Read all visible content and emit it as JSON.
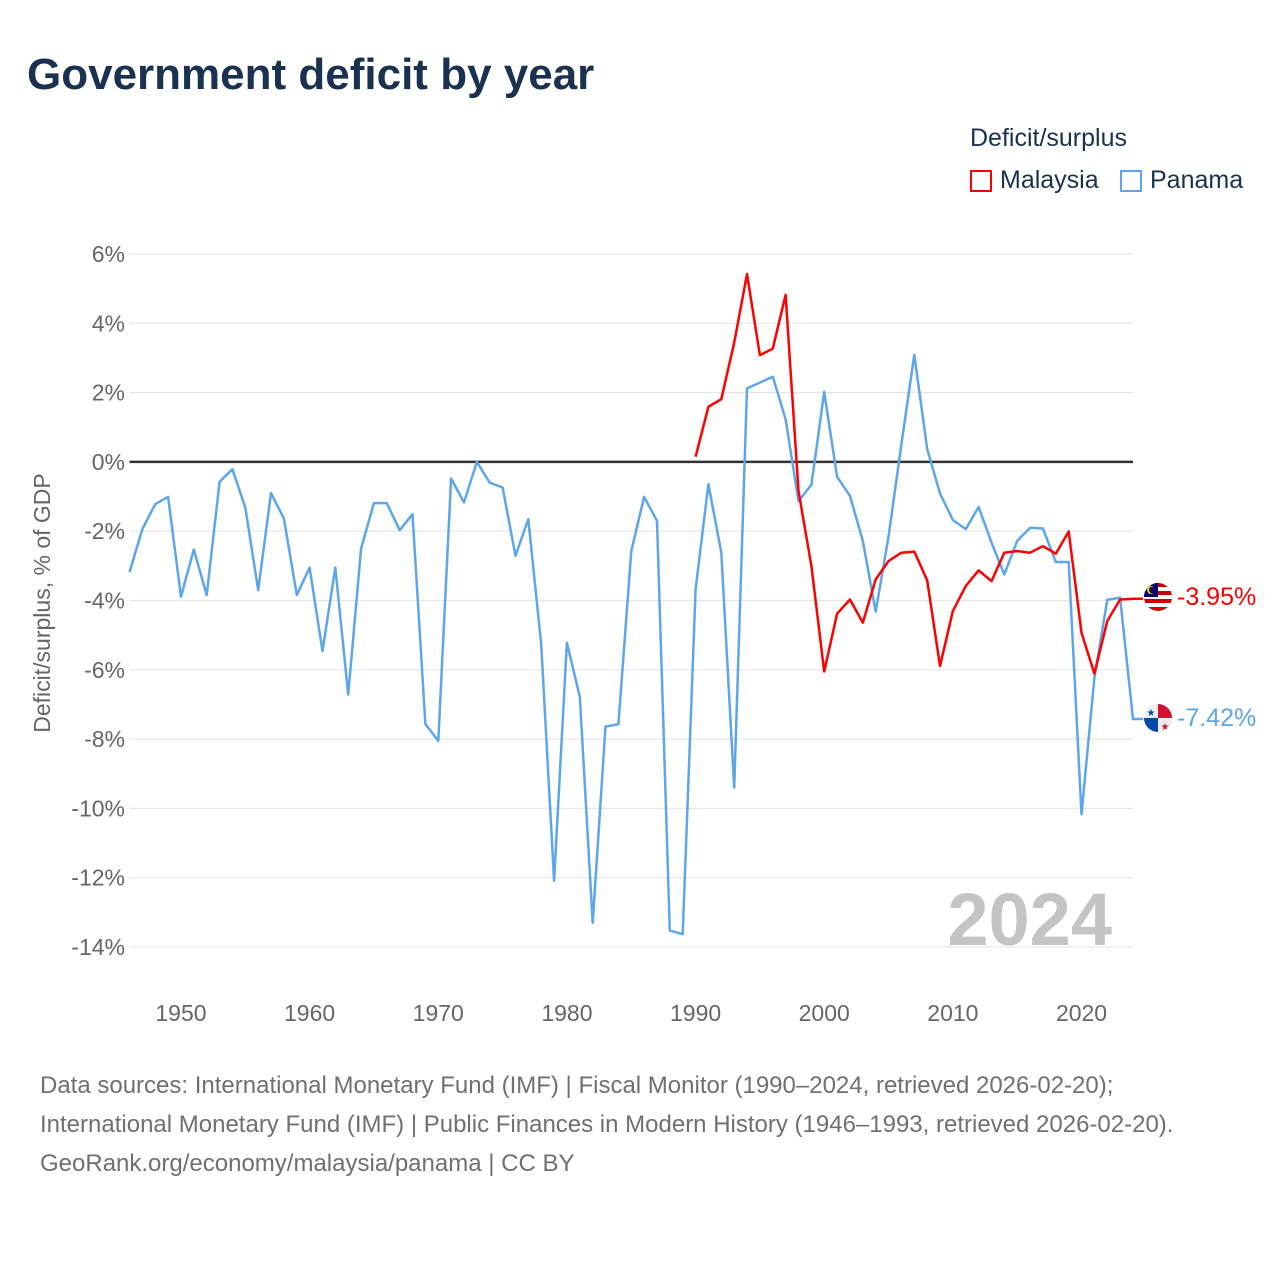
{
  "title": "Government deficit by year",
  "legend": {
    "title": "Deficit/surplus",
    "items": [
      {
        "name": "Malaysia",
        "color": "#ff0000"
      },
      {
        "name": "Panama",
        "color": "#5ea6ea"
      }
    ]
  },
  "chart_data": {
    "type": "line",
    "title": "Government deficit by year",
    "xlabel": "",
    "ylabel": "Deficit/surplus, % of GDP",
    "xlim": [
      1946,
      2024
    ],
    "ylim": [
      -14,
      6
    ],
    "yticks": [
      6,
      4,
      2,
      0,
      -2,
      -4,
      -6,
      -8,
      -10,
      -12,
      -14
    ],
    "ytick_labels": [
      "6%",
      "4%",
      "2%",
      "0%",
      "-2%",
      "-4%",
      "-6%",
      "-8%",
      "-10%",
      "-12%",
      "-14%"
    ],
    "xticks": [
      1950,
      1960,
      1970,
      1980,
      1990,
      2000,
      2010,
      2020
    ],
    "xtick_labels": [
      "1950",
      "1960",
      "1970",
      "1980",
      "1990",
      "2000",
      "2010",
      "2020"
    ],
    "grid": true,
    "legend_position": "top-right",
    "year_watermark": "2024",
    "series": [
      {
        "name": "Malaysia",
        "color": "#ff0000",
        "end_label": "-3.95%",
        "start_year": 1990,
        "values": [
          0.15,
          1.59,
          1.81,
          3.44,
          5.42,
          3.08,
          3.27,
          4.82,
          -0.84,
          -3.0,
          -6.05,
          -4.38,
          -3.97,
          -4.64,
          -3.39,
          -2.86,
          -2.62,
          -2.59,
          -3.42,
          -5.89,
          -4.3,
          -3.58,
          -3.13,
          -3.44,
          -2.62,
          -2.57,
          -2.62,
          -2.43,
          -2.65,
          -2.01,
          -4.93,
          -6.11,
          -4.59,
          -3.97,
          -3.95
        ]
      },
      {
        "name": "Panama",
        "color": "#5ea6ea",
        "end_label": "-7.42%",
        "start_year": 1946,
        "values": [
          -3.18,
          -1.94,
          -1.22,
          -1.01,
          -3.89,
          -2.53,
          -3.84,
          -0.57,
          -0.21,
          -1.32,
          -3.7,
          -0.9,
          -1.63,
          -3.84,
          -3.05,
          -5.46,
          -3.05,
          -6.71,
          -2.5,
          -1.19,
          -1.19,
          -1.97,
          -1.51,
          -7.57,
          -8.05,
          -0.48,
          -1.17,
          0.0,
          -0.6,
          -0.74,
          -2.71,
          -1.65,
          -5.26,
          -12.09,
          -5.22,
          -6.78,
          -13.3,
          -7.64,
          -7.57,
          -2.57,
          -1.01,
          -1.7,
          -13.52,
          -13.63,
          -3.67,
          -0.64,
          -2.62,
          -9.4,
          2.12,
          2.29,
          2.46,
          1.23,
          -1.13,
          -0.66,
          2.02,
          -0.43,
          -0.98,
          -2.28,
          -4.32,
          -2.14,
          0.51,
          3.09,
          0.37,
          -0.91,
          -1.68,
          -1.94,
          -1.3,
          -2.33,
          -3.25,
          -2.28,
          -1.9,
          -1.92,
          -2.89,
          -2.89,
          -10.17,
          -6.23,
          -3.98,
          -3.92,
          -7.42
        ]
      }
    ]
  },
  "footer": {
    "sources": "Data sources: International Monetary Fund (IMF) | Fiscal Monitor (1990–2024, retrieved 2026-02-20); International Monetary Fund (IMF) | Public Finances in Modern History (1946–1993, retrieved 2026-02-20).",
    "credit": "GeoRank.org/economy/malaysia/panama | CC BY"
  }
}
